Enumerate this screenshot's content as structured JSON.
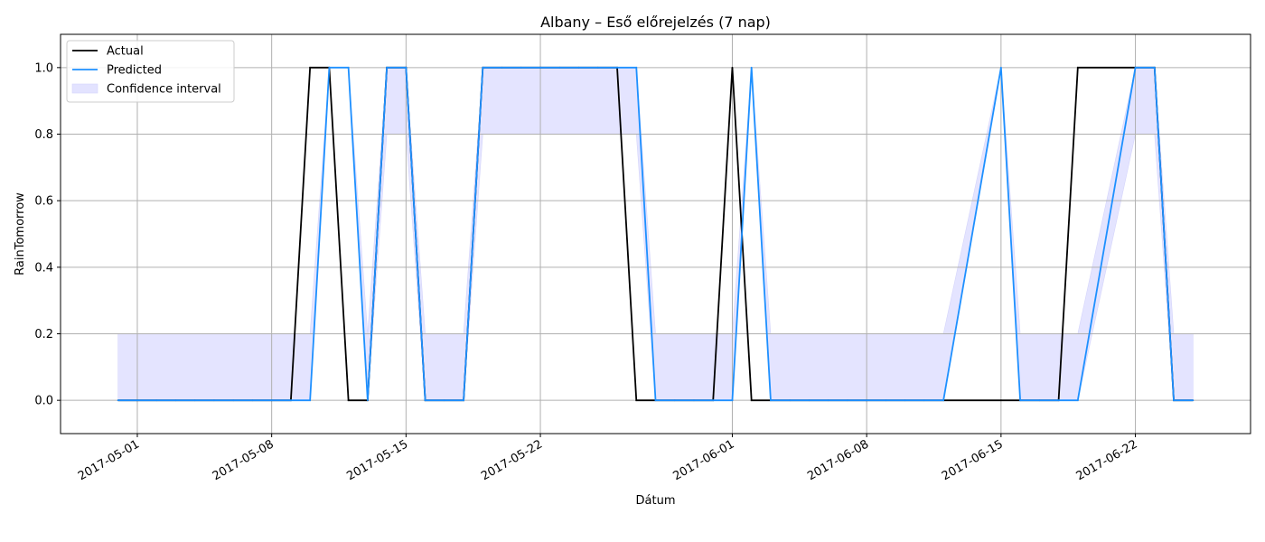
{
  "chart_data": {
    "type": "line",
    "title": "Albany – Eső előrejelzés (7 nap)",
    "xlabel": "Dátum",
    "ylabel": "RainTomorrow",
    "ylim": [
      -0.1,
      1.1
    ],
    "xlim": [
      "2017-04-27",
      "2017-06-28"
    ],
    "grid": true,
    "legend_position": "top-left",
    "yticks": [
      0.0,
      0.2,
      0.4,
      0.6,
      0.8,
      1.0
    ],
    "ytick_labels": [
      "0.0",
      "0.2",
      "0.4",
      "0.6",
      "0.8",
      "1.0"
    ],
    "xticks": [
      "2017-05-01",
      "2017-05-08",
      "2017-05-15",
      "2017-05-22",
      "2017-06-01",
      "2017-06-08",
      "2017-06-15",
      "2017-06-22"
    ],
    "dates": [
      "2017-04-30",
      "2017-05-01",
      "2017-05-02",
      "2017-05-03",
      "2017-05-04",
      "2017-05-05",
      "2017-05-06",
      "2017-05-07",
      "2017-05-08",
      "2017-05-09",
      "2017-05-10",
      "2017-05-11",
      "2017-05-12",
      "2017-05-13",
      "2017-05-14",
      "2017-05-15",
      "2017-05-16",
      "2017-05-17",
      "2017-05-18",
      "2017-05-19",
      "2017-05-20",
      "2017-05-21",
      "2017-05-22",
      "2017-05-23",
      "2017-05-24",
      "2017-05-25",
      "2017-05-26",
      "2017-05-27",
      "2017-05-28",
      "2017-05-29",
      "2017-05-30",
      "2017-05-31",
      "2017-06-01",
      "2017-06-02",
      "2017-06-03",
      "2017-06-04",
      "2017-06-05",
      "2017-06-06",
      "2017-06-07",
      "2017-06-08",
      "2017-06-09",
      "2017-06-10",
      "2017-06-11",
      "2017-06-12",
      "2017-06-15",
      "2017-06-16",
      "2017-06-17",
      "2017-06-18",
      "2017-06-19",
      "2017-06-22",
      "2017-06-23",
      "2017-06-24",
      "2017-06-25"
    ],
    "series": [
      {
        "name": "Actual",
        "color": "#000000",
        "values": [
          0,
          0,
          0,
          0,
          0,
          0,
          0,
          0,
          0,
          0,
          1,
          1,
          0,
          0,
          1,
          1,
          0,
          0,
          0,
          1,
          1,
          1,
          1,
          1,
          1,
          1,
          1,
          0,
          0,
          0,
          0,
          0,
          1,
          0,
          0,
          0,
          0,
          0,
          0,
          0,
          0,
          0,
          0,
          0,
          0,
          0,
          0,
          0,
          1,
          1,
          1,
          0,
          0
        ]
      },
      {
        "name": "Predicted",
        "color": "#1e90ff",
        "values": [
          0,
          0,
          0,
          0,
          0,
          0,
          0,
          0,
          0,
          0,
          0,
          1,
          1,
          0,
          1,
          1,
          0,
          0,
          0,
          1,
          1,
          1,
          1,
          1,
          1,
          1,
          1,
          1,
          0,
          0,
          0,
          0,
          0,
          1,
          0,
          0,
          0,
          0,
          0,
          0,
          0,
          0,
          0,
          0,
          1,
          0,
          0,
          0,
          0,
          1,
          1,
          0,
          0
        ]
      }
    ],
    "confidence_interval": {
      "name": "Confidence interval",
      "color": "#e3e3ff",
      "lower": [
        0,
        0,
        0,
        0,
        0,
        0,
        0,
        0,
        0,
        0,
        0,
        1,
        1,
        0,
        0.8,
        0.8,
        0,
        0,
        0,
        0.8,
        0.8,
        0.8,
        0.8,
        0.8,
        0.8,
        0.8,
        0.8,
        0.8,
        0,
        0,
        0,
        0,
        0,
        1,
        0,
        0,
        0,
        0,
        0,
        0,
        0,
        0,
        0,
        0,
        1,
        0,
        0,
        0,
        0,
        0.8,
        0.8,
        0,
        0
      ],
      "upper": [
        0.2,
        0.2,
        0.2,
        0.2,
        0.2,
        0.2,
        0.2,
        0.2,
        0.2,
        0.2,
        0.2,
        1,
        1,
        0.2,
        1,
        1,
        0.2,
        0.2,
        0.2,
        1,
        1,
        1,
        1,
        1,
        1,
        1,
        1,
        1,
        0.2,
        0.2,
        0.2,
        0.2,
        0.2,
        1,
        0.2,
        0.2,
        0.2,
        0.2,
        0.2,
        0.2,
        0.2,
        0.2,
        0.2,
        0.2,
        1,
        0.2,
        0.2,
        0.2,
        0.2,
        1,
        1,
        0.2,
        0.2
      ]
    }
  }
}
